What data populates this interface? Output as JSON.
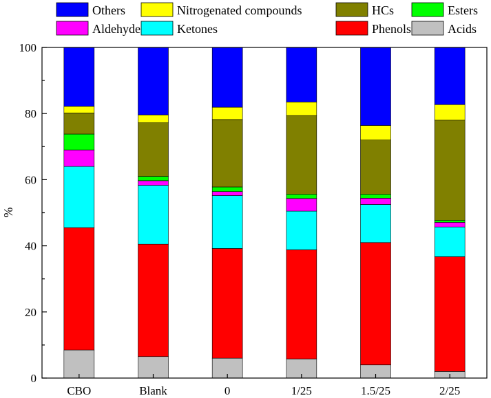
{
  "chart_data": {
    "type": "bar",
    "stacked": true,
    "categories": [
      "CBO",
      "Blank",
      "0",
      "1/25",
      "1.5/25",
      "2/25"
    ],
    "ylabel": "%",
    "ylim": [
      0,
      100
    ],
    "yticks": [
      0,
      20,
      40,
      60,
      80,
      100
    ],
    "grid": false,
    "legend": "top",
    "series": [
      {
        "name": "Acids",
        "color": "#c0c0c0",
        "values": [
          8.5,
          6.5,
          6.0,
          5.8,
          4.0,
          2.0
        ]
      },
      {
        "name": "Phenols",
        "color": "#ff0000",
        "values": [
          37.0,
          34.0,
          33.2,
          33.0,
          37.0,
          34.7
        ]
      },
      {
        "name": "Ketones",
        "color": "#00ffff",
        "values": [
          18.5,
          17.8,
          16.0,
          11.7,
          11.5,
          9.0
        ]
      },
      {
        "name": "Aldehydes",
        "color": "#ff00ff",
        "values": [
          5.0,
          1.4,
          1.2,
          3.8,
          1.9,
          1.4
        ]
      },
      {
        "name": "Esters",
        "color": "#00ff00",
        "values": [
          4.8,
          1.3,
          1.4,
          1.3,
          1.2,
          0.6
        ]
      },
      {
        "name": "HCs",
        "color": "#808000",
        "values": [
          6.4,
          16.2,
          20.4,
          23.8,
          16.4,
          30.3
        ]
      },
      {
        "name": "Nitrogenated compounds",
        "color": "#ffff00",
        "values": [
          2.0,
          2.4,
          3.7,
          4.1,
          4.4,
          4.7
        ]
      },
      {
        "name": "Others",
        "color": "#0000ff",
        "values": [
          17.8,
          20.4,
          18.1,
          16.5,
          23.6,
          17.3
        ]
      }
    ],
    "legend_order": [
      "Others",
      "Nitrogenated compounds",
      "HCs",
      "Esters",
      "Aldehydes",
      "Ketones",
      "Phenols",
      "Acids"
    ]
  }
}
